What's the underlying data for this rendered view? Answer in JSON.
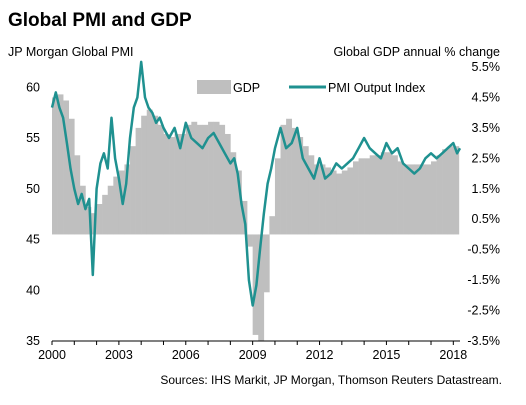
{
  "chart_data": {
    "type": "line",
    "title": "Global PMI and GDP",
    "left_axis_title": "JP Morgan Global PMI",
    "right_axis_title": "Global GDP annual % change",
    "source": "Sources: IHS Markit, JP Morgan, Thomson Reuters Datastream.",
    "left_axis": {
      "min": 35,
      "max": 62,
      "ticks": [
        35,
        40,
        45,
        50,
        55,
        60
      ]
    },
    "right_axis": {
      "min": -3.5,
      "max": 5.5,
      "ticks": [
        -3.5,
        -2.5,
        -1.5,
        -0.5,
        0.5,
        1.5,
        2.5,
        3.5,
        4.5,
        5.5
      ],
      "tick_labels": [
        "-3.5%",
        "-2.5%",
        "-1.5%",
        "-0.5%",
        "0.5%",
        "1.5%",
        "2.5%",
        "3.5%",
        "4.5%",
        "5.5%"
      ]
    },
    "x_axis": {
      "min": 2000,
      "max": 2018.3,
      "ticks": [
        2000,
        2003,
        2006,
        2009,
        2012,
        2015,
        2018
      ]
    },
    "legend": {
      "placement": "top-right"
    },
    "series": [
      {
        "name": "GDP",
        "kind": "bar",
        "axis": "right",
        "color": "#bfbfbf",
        "x": [
          2000.0,
          2000.25,
          2000.5,
          2000.75,
          2001.0,
          2001.25,
          2001.5,
          2001.75,
          2002.0,
          2002.25,
          2002.5,
          2002.75,
          2003.0,
          2003.25,
          2003.5,
          2003.75,
          2004.0,
          2004.25,
          2004.5,
          2004.75,
          2005.0,
          2005.25,
          2005.5,
          2005.75,
          2006.0,
          2006.25,
          2006.5,
          2006.75,
          2007.0,
          2007.25,
          2007.5,
          2007.75,
          2008.0,
          2008.25,
          2008.5,
          2008.75,
          2009.0,
          2009.25,
          2009.5,
          2009.75,
          2010.0,
          2010.25,
          2010.5,
          2010.75,
          2011.0,
          2011.25,
          2011.5,
          2011.75,
          2012.0,
          2012.25,
          2012.5,
          2012.75,
          2013.0,
          2013.25,
          2013.5,
          2013.75,
          2014.0,
          2014.25,
          2014.5,
          2014.75,
          2015.0,
          2015.25,
          2015.5,
          2015.75,
          2016.0,
          2016.25,
          2016.5,
          2016.75,
          2017.0,
          2017.25,
          2017.5,
          2017.75,
          2018.0
        ],
        "values": [
          4.5,
          4.6,
          4.4,
          3.8,
          2.6,
          1.6,
          0.9,
          0.7,
          1.0,
          1.3,
          1.6,
          1.9,
          2.1,
          2.3,
          2.9,
          3.5,
          3.9,
          4.1,
          3.9,
          3.6,
          3.3,
          3.2,
          3.3,
          3.3,
          3.6,
          3.7,
          3.6,
          3.6,
          3.7,
          3.7,
          3.6,
          3.3,
          2.7,
          2.1,
          1.1,
          -0.4,
          -3.3,
          -3.5,
          -1.9,
          0.6,
          2.5,
          3.6,
          3.8,
          3.5,
          3.2,
          2.9,
          2.6,
          2.3,
          2.3,
          2.2,
          2.1,
          2.0,
          2.1,
          2.2,
          2.4,
          2.5,
          2.5,
          2.6,
          2.6,
          2.7,
          2.7,
          2.6,
          2.4,
          2.3,
          2.3,
          2.3,
          2.3,
          2.3,
          2.4,
          2.6,
          2.8,
          2.9,
          2.9
        ]
      },
      {
        "name": "PMI Output Index",
        "kind": "line",
        "axis": "left",
        "color": "#1f9190",
        "x": [
          2000.0,
          2000.17,
          2000.33,
          2000.5,
          2000.67,
          2000.83,
          2001.0,
          2001.17,
          2001.33,
          2001.5,
          2001.67,
          2001.83,
          2002.0,
          2002.17,
          2002.33,
          2002.5,
          2002.67,
          2002.83,
          2003.0,
          2003.17,
          2003.33,
          2003.5,
          2003.67,
          2003.83,
          2004.0,
          2004.17,
          2004.33,
          2004.5,
          2004.67,
          2004.83,
          2005.0,
          2005.25,
          2005.5,
          2005.75,
          2006.0,
          2006.25,
          2006.5,
          2006.75,
          2007.0,
          2007.25,
          2007.5,
          2007.75,
          2008.0,
          2008.17,
          2008.33,
          2008.5,
          2008.67,
          2008.83,
          2009.0,
          2009.17,
          2009.33,
          2009.5,
          2009.67,
          2009.83,
          2010.0,
          2010.25,
          2010.5,
          2010.75,
          2011.0,
          2011.25,
          2011.5,
          2011.75,
          2012.0,
          2012.25,
          2012.5,
          2012.75,
          2013.0,
          2013.25,
          2013.5,
          2013.75,
          2014.0,
          2014.25,
          2014.5,
          2014.75,
          2015.0,
          2015.25,
          2015.5,
          2015.75,
          2016.0,
          2016.25,
          2016.5,
          2016.75,
          2017.0,
          2017.25,
          2017.5,
          2017.75,
          2018.0,
          2018.17,
          2018.3
        ],
        "values": [
          58.0,
          59.5,
          58.0,
          57.0,
          54.5,
          52.0,
          50.0,
          48.5,
          49.5,
          48.0,
          49.0,
          41.5,
          50.0,
          52.5,
          53.5,
          52.0,
          57.0,
          53.0,
          51.0,
          48.5,
          50.5,
          55.0,
          58.0,
          59.0,
          62.5,
          59.0,
          58.0,
          57.5,
          56.5,
          57.0,
          56.0,
          55.0,
          56.0,
          54.0,
          56.5,
          55.0,
          54.5,
          54.0,
          55.0,
          55.5,
          54.5,
          53.5,
          52.5,
          53.0,
          51.5,
          48.5,
          46.5,
          41.0,
          38.5,
          40.5,
          44.0,
          47.5,
          50.5,
          52.0,
          54.0,
          56.0,
          54.0,
          54.5,
          56.0,
          53.0,
          52.0,
          51.0,
          53.0,
          51.0,
          51.5,
          52.5,
          52.0,
          52.5,
          53.0,
          54.0,
          55.0,
          54.0,
          53.5,
          53.0,
          54.5,
          53.5,
          54.0,
          52.5,
          52.0,
          51.5,
          52.0,
          53.0,
          53.5,
          53.0,
          53.5,
          54.0,
          54.5,
          53.5,
          54.0
        ]
      }
    ]
  }
}
